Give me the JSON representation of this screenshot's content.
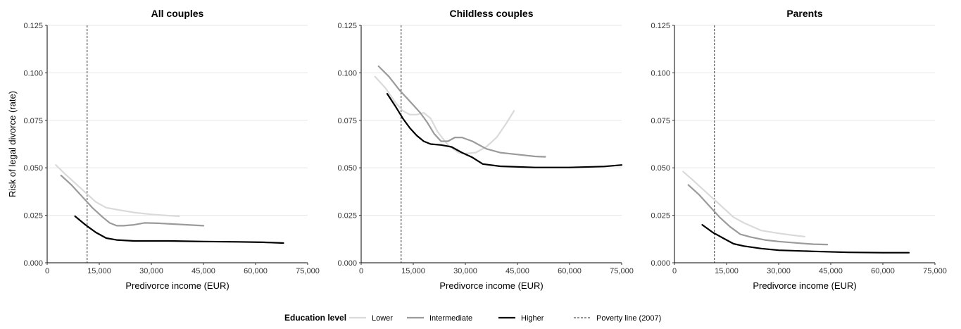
{
  "chart_data": {
    "type": "line",
    "ylabel": "Risk of legal divorce (rate)",
    "xlabel": "Predivorce income (EUR)",
    "xlim": [
      0,
      75000
    ],
    "ylim": [
      0,
      0.125
    ],
    "x_ticks": [
      0,
      15000,
      30000,
      45000,
      60000,
      75000
    ],
    "x_tick_labels": [
      "0",
      "15,000",
      "30,000",
      "45,000",
      "60,000",
      "75,000"
    ],
    "y_ticks": [
      0,
      0.025,
      0.05,
      0.075,
      0.1,
      0.125
    ],
    "y_tick_labels": [
      "0.000",
      "0.025",
      "0.050",
      "0.075",
      "0.100",
      "0.125"
    ],
    "grid": "horizontal",
    "poverty_line_x": 11500,
    "legend": {
      "placement": "bottom",
      "title": "Education level",
      "entries": [
        {
          "label": "Lower",
          "color": "#dadada",
          "style": "solid"
        },
        {
          "label": "Intermediate",
          "color": "#9b9b9b",
          "style": "solid"
        },
        {
          "label": "Higher",
          "color": "#000000",
          "style": "solid"
        },
        {
          "label": "Poverty line (2007)",
          "color": "#555555",
          "style": "dashed"
        }
      ]
    },
    "panels": [
      {
        "title": "All couples",
        "series": [
          {
            "name": "Lower",
            "color": "#dadada",
            "points": [
              [
                2500,
                0.0515
              ],
              [
                5000,
                0.047
              ],
              [
                8000,
                0.042
              ],
              [
                11000,
                0.037
              ],
              [
                14000,
                0.032
              ],
              [
                17000,
                0.029
              ],
              [
                20000,
                0.028
              ],
              [
                25000,
                0.0265
              ],
              [
                30000,
                0.0255
              ],
              [
                35000,
                0.0248
              ],
              [
                38000,
                0.0245
              ]
            ]
          },
          {
            "name": "Intermediate",
            "color": "#9b9b9b",
            "points": [
              [
                4000,
                0.046
              ],
              [
                7000,
                0.041
              ],
              [
                10000,
                0.035
              ],
              [
                13000,
                0.029
              ],
              [
                16000,
                0.024
              ],
              [
                18000,
                0.021
              ],
              [
                20000,
                0.0195
              ],
              [
                22000,
                0.0195
              ],
              [
                25000,
                0.02
              ],
              [
                28000,
                0.021
              ],
              [
                32000,
                0.0208
              ],
              [
                38000,
                0.0202
              ],
              [
                45000,
                0.0195
              ]
            ]
          },
          {
            "name": "Higher",
            "color": "#000000",
            "points": [
              [
                8000,
                0.0245
              ],
              [
                11000,
                0.02
              ],
              [
                14000,
                0.016
              ],
              [
                17000,
                0.013
              ],
              [
                20000,
                0.012
              ],
              [
                25000,
                0.0115
              ],
              [
                30000,
                0.0115
              ],
              [
                35000,
                0.0115
              ],
              [
                45000,
                0.0112
              ],
              [
                55000,
                0.011
              ],
              [
                62000,
                0.0108
              ],
              [
                68000,
                0.0104
              ]
            ]
          }
        ]
      },
      {
        "title": "Childless couples",
        "series": [
          {
            "name": "Lower",
            "color": "#dadada",
            "points": [
              [
                4000,
                0.098
              ],
              [
                7000,
                0.092
              ],
              [
                10000,
                0.084
              ],
              [
                12000,
                0.08
              ],
              [
                14000,
                0.078
              ],
              [
                16000,
                0.078
              ],
              [
                18000,
                0.079
              ],
              [
                20000,
                0.076
              ],
              [
                22000,
                0.069
              ],
              [
                25000,
                0.062
              ],
              [
                28000,
                0.058
              ],
              [
                30000,
                0.0575
              ],
              [
                33000,
                0.058
              ],
              [
                36000,
                0.061
              ],
              [
                39000,
                0.066
              ],
              [
                42000,
                0.074
              ],
              [
                44000,
                0.08
              ]
            ]
          },
          {
            "name": "Intermediate",
            "color": "#9b9b9b",
            "points": [
              [
                5000,
                0.1035
              ],
              [
                8000,
                0.098
              ],
              [
                11000,
                0.091
              ],
              [
                14000,
                0.085
              ],
              [
                17000,
                0.079
              ],
              [
                19000,
                0.074
              ],
              [
                21000,
                0.068
              ],
              [
                23000,
                0.064
              ],
              [
                25000,
                0.064
              ],
              [
                27000,
                0.066
              ],
              [
                29000,
                0.066
              ],
              [
                32000,
                0.064
              ],
              [
                36000,
                0.06
              ],
              [
                40000,
                0.058
              ],
              [
                45000,
                0.057
              ],
              [
                50000,
                0.056
              ],
              [
                53000,
                0.0558
              ]
            ]
          },
          {
            "name": "Higher",
            "color": "#000000",
            "points": [
              [
                7500,
                0.089
              ],
              [
                10000,
                0.082
              ],
              [
                12000,
                0.076
              ],
              [
                14000,
                0.071
              ],
              [
                16000,
                0.067
              ],
              [
                18000,
                0.064
              ],
              [
                20000,
                0.0625
              ],
              [
                23000,
                0.062
              ],
              [
                26000,
                0.061
              ],
              [
                29000,
                0.058
              ],
              [
                32000,
                0.0555
              ],
              [
                35000,
                0.052
              ],
              [
                40000,
                0.0508
              ],
              [
                50000,
                0.0502
              ],
              [
                60000,
                0.0502
              ],
              [
                70000,
                0.0507
              ],
              [
                75000,
                0.0515
              ]
            ]
          }
        ]
      },
      {
        "title": "Parents",
        "series": [
          {
            "name": "Lower",
            "color": "#dadada",
            "points": [
              [
                2500,
                0.048
              ],
              [
                5000,
                0.044
              ],
              [
                8000,
                0.039
              ],
              [
                11000,
                0.034
              ],
              [
                14000,
                0.029
              ],
              [
                17000,
                0.024
              ],
              [
                20000,
                0.021
              ],
              [
                25000,
                0.017
              ],
              [
                30000,
                0.0155
              ],
              [
                34000,
                0.0145
              ],
              [
                37500,
                0.0138
              ]
            ]
          },
          {
            "name": "Intermediate",
            "color": "#9b9b9b",
            "points": [
              [
                4000,
                0.041
              ],
              [
                7000,
                0.036
              ],
              [
                10000,
                0.03
              ],
              [
                13000,
                0.024
              ],
              [
                16000,
                0.019
              ],
              [
                19000,
                0.015
              ],
              [
                22000,
                0.0135
              ],
              [
                26000,
                0.012
              ],
              [
                30000,
                0.0112
              ],
              [
                36000,
                0.0103
              ],
              [
                40000,
                0.0098
              ],
              [
                44000,
                0.0096
              ]
            ]
          },
          {
            "name": "Higher",
            "color": "#000000",
            "points": [
              [
                8000,
                0.02
              ],
              [
                11000,
                0.016
              ],
              [
                14000,
                0.013
              ],
              [
                17000,
                0.01
              ],
              [
                20000,
                0.0088
              ],
              [
                25000,
                0.0075
              ],
              [
                30000,
                0.0066
              ],
              [
                40000,
                0.006
              ],
              [
                50000,
                0.0055
              ],
              [
                60000,
                0.0053
              ],
              [
                67500,
                0.0053
              ]
            ]
          }
        ]
      }
    ]
  }
}
